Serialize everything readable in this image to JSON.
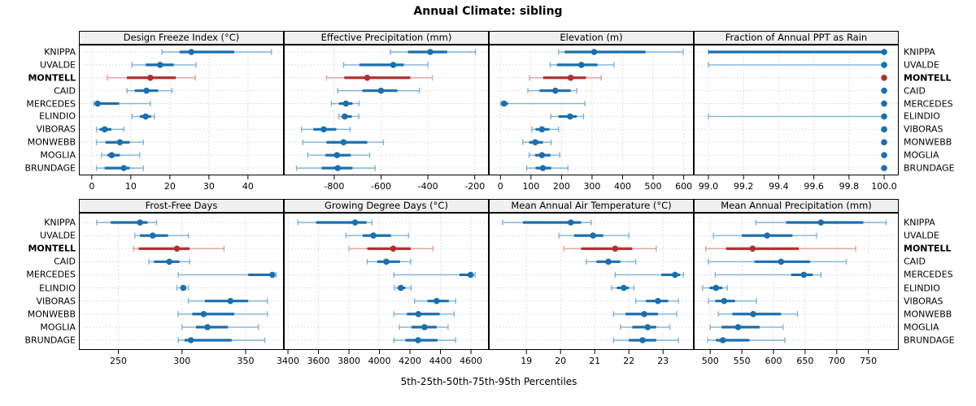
{
  "title": "Annual Climate: sibling",
  "xlabel": "5th-25th-50th-75th-95th Percentiles",
  "stations": [
    "KNIPPA",
    "UVALDE",
    "MONTELL",
    "CAID",
    "MERCEDES",
    "ELINDIO",
    "VIBORAS",
    "MONWEBB",
    "MOGLIA",
    "BRUNDAGE"
  ],
  "highlight_station": "MONTELL",
  "colors": {
    "series": "#1B6FAE",
    "series_light": "#7FB2D8",
    "highlight": "#B03030",
    "highlight_light": "#DE9F9F",
    "grid": "#D9D9D9",
    "strip_bg": "#F0F0F0",
    "panel_border": "#000000",
    "text": "#000000"
  },
  "chart_data": {
    "type": "dotplot-intervals",
    "percentiles": [
      5,
      25,
      50,
      75,
      95
    ],
    "grid": "dashed",
    "legend_position": "none",
    "layout": {
      "rows": 2,
      "cols": 4
    },
    "panels": [
      {
        "title": "Design Freeze Index (°C)",
        "row": 0,
        "col": 0,
        "xlim": [
          -3.3,
          49.2
        ],
        "ticks": [
          0,
          10,
          20,
          30,
          40
        ],
        "tick_labels": [
          "0",
          "10",
          "20",
          "30",
          "40"
        ],
        "values": [
          [
            18,
            22.5,
            25.5,
            36.5,
            46
          ],
          [
            10.3,
            13.8,
            17.5,
            21,
            26.7
          ],
          [
            4,
            9,
            15,
            21.5,
            26.5
          ],
          [
            9,
            11,
            14,
            17,
            20.5
          ],
          [
            0.5,
            1,
            1.5,
            7,
            15
          ],
          [
            10.3,
            12.3,
            13.8,
            15.2,
            16
          ],
          [
            1.2,
            2,
            3.3,
            5,
            8.2
          ],
          [
            1.2,
            3.5,
            7.2,
            9.7,
            13.2
          ],
          [
            2.5,
            4,
            5.1,
            7.2,
            12.3
          ],
          [
            1.2,
            3.3,
            8.2,
            9.7,
            13.2
          ]
        ]
      },
      {
        "title": "Effective Precipitation (mm)",
        "row": 0,
        "col": 1,
        "xlim": [
          -1015,
          -140
        ],
        "ticks": [
          -800,
          -600,
          -400,
          -200
        ],
        "tick_labels": [
          "-800",
          "-600",
          "-400",
          "-200"
        ],
        "values": [
          [
            -560,
            -485,
            -390,
            -318,
            -197
          ],
          [
            -760,
            -693,
            -548,
            -503,
            -400
          ],
          [
            -833,
            -757,
            -659,
            -475,
            -381
          ],
          [
            -785,
            -680,
            -600,
            -530,
            -436
          ],
          [
            -812,
            -780,
            -750,
            -722,
            -694
          ],
          [
            -780,
            -768,
            -755,
            -725,
            -695
          ],
          [
            -940,
            -889,
            -845,
            -791,
            -732
          ],
          [
            -934,
            -833,
            -760,
            -659,
            -590
          ],
          [
            -913,
            -837,
            -788,
            -729,
            -649
          ],
          [
            -961,
            -854,
            -785,
            -722,
            -625
          ]
        ]
      },
      {
        "title": "Elevation (m)",
        "row": 0,
        "col": 2,
        "xlim": [
          -38,
          633
        ],
        "ticks": [
          0,
          100,
          200,
          300,
          400,
          500,
          600
        ],
        "tick_labels": [
          "0",
          "100",
          "200",
          "300",
          "400",
          "500",
          "600"
        ],
        "values": [
          [
            190,
            210,
            307,
            475,
            598
          ],
          [
            163,
            185,
            265,
            318,
            372
          ],
          [
            95,
            140,
            230,
            280,
            330
          ],
          [
            90,
            128,
            180,
            230,
            250
          ],
          [
            1,
            5,
            12,
            25,
            277
          ],
          [
            165,
            190,
            228,
            250,
            272
          ],
          [
            103,
            115,
            136,
            160,
            190
          ],
          [
            73,
            94,
            114,
            139,
            166
          ],
          [
            94,
            114,
            136,
            164,
            194
          ],
          [
            86,
            115,
            139,
            166,
            221
          ]
        ]
      },
      {
        "title": "Fraction of Annual PPT as Rain",
        "row": 0,
        "col": 3,
        "xlim": [
          98.917,
          100.083
        ],
        "ticks": [
          99.0,
          99.2,
          99.4,
          99.6,
          99.8,
          100.0
        ],
        "tick_labels": [
          "99.0",
          "99.2",
          "99.4",
          "99.6",
          "99.8",
          "100.0"
        ],
        "values": [
          [
            99,
            99,
            100,
            100,
            100
          ],
          [
            99,
            100,
            100,
            100,
            100
          ],
          [
            100,
            100,
            100,
            100,
            100
          ],
          [
            100,
            100,
            100,
            100,
            100
          ],
          [
            100,
            100,
            100,
            100,
            100
          ],
          [
            99,
            100,
            100,
            100,
            100
          ],
          [
            100,
            100,
            100,
            100,
            100
          ],
          [
            100,
            100,
            100,
            100,
            100
          ],
          [
            100,
            100,
            100,
            100,
            100
          ],
          [
            100,
            100,
            100,
            100,
            100
          ]
        ]
      },
      {
        "title": "Frost-Free Days",
        "row": 1,
        "col": 0,
        "xlim": [
          219,
          380
        ],
        "ticks": [
          250,
          300,
          350
        ],
        "tick_labels": [
          "250",
          "300",
          "350"
        ],
        "values": [
          [
            233,
            244,
            267,
            273,
            280
          ],
          [
            263,
            267,
            277,
            289,
            305
          ],
          [
            262,
            266,
            296,
            306,
            333
          ],
          [
            274,
            278,
            290,
            298,
            306
          ],
          [
            297,
            352,
            371,
            372,
            374
          ],
          [
            296,
            299,
            301,
            303,
            305
          ],
          [
            305,
            318,
            338,
            352,
            367
          ],
          [
            297,
            308,
            317,
            341,
            367
          ],
          [
            300,
            311,
            320,
            336,
            360
          ],
          [
            297,
            302,
            307,
            339,
            365
          ]
        ]
      },
      {
        "title": "Growing Degree Days (°C)",
        "row": 1,
        "col": 1,
        "xlim": [
          3373,
          4717
        ],
        "ticks": [
          3400,
          3600,
          3800,
          4000,
          4200,
          4400,
          4600
        ],
        "tick_labels": [
          "3400",
          "3600",
          "3800",
          "4000",
          "4200",
          "4400",
          "4600"
        ],
        "values": [
          [
            3465,
            3585,
            3840,
            3915,
            3950
          ],
          [
            3780,
            3890,
            3960,
            4075,
            4190
          ],
          [
            3800,
            3920,
            4090,
            4205,
            4350
          ],
          [
            3920,
            3985,
            4045,
            4135,
            4205
          ],
          [
            4095,
            4525,
            4598,
            4615,
            4627
          ],
          [
            4098,
            4118,
            4140,
            4170,
            4207
          ],
          [
            4230,
            4315,
            4375,
            4455,
            4500
          ],
          [
            4095,
            4180,
            4255,
            4395,
            4490
          ],
          [
            4130,
            4210,
            4295,
            4375,
            4450
          ],
          [
            4095,
            4170,
            4253,
            4380,
            4500
          ]
        ]
      },
      {
        "title": "Mean Annual Air Temperature (°C)",
        "row": 1,
        "col": 2,
        "xlim": [
          17.9,
          23.9
        ],
        "ticks": [
          19,
          20,
          21,
          22,
          23
        ],
        "tick_labels": [
          "19",
          "20",
          "21",
          "22",
          "23"
        ],
        "values": [
          [
            18.3,
            18.9,
            20.3,
            20.6,
            20.9
          ],
          [
            19.95,
            20.4,
            20.95,
            21.25,
            22.0
          ],
          [
            20.1,
            20.6,
            21.6,
            22.1,
            22.8
          ],
          [
            20.75,
            21.05,
            21.4,
            21.75,
            22.2
          ],
          [
            21.6,
            22.95,
            23.35,
            23.5,
            23.6
          ],
          [
            21.5,
            21.65,
            21.85,
            22.0,
            22.15
          ],
          [
            22.2,
            22.5,
            22.85,
            23.15,
            23.45
          ],
          [
            21.55,
            21.9,
            22.45,
            22.85,
            23.4
          ],
          [
            21.75,
            22.1,
            22.55,
            22.8,
            23.2
          ],
          [
            21.55,
            22.0,
            22.4,
            22.8,
            23.45
          ]
        ]
      },
      {
        "title": "Mean Annual Precipitation (mm)",
        "row": 1,
        "col": 3,
        "xlim": [
          474,
          798
        ],
        "ticks": [
          500,
          550,
          600,
          650,
          700,
          750
        ],
        "tick_labels": [
          "500",
          "550",
          "600",
          "650",
          "700",
          "750"
        ],
        "values": [
          [
            572,
            620,
            675,
            742,
            778
          ],
          [
            505,
            550,
            590,
            630,
            668
          ],
          [
            493,
            525,
            567,
            640,
            730
          ],
          [
            497,
            570,
            612,
            658,
            715
          ],
          [
            508,
            628,
            648,
            662,
            675
          ],
          [
            488,
            499,
            509,
            519,
            527
          ],
          [
            497,
            508,
            522,
            539,
            573
          ],
          [
            513,
            535,
            568,
            612,
            638
          ],
          [
            500,
            518,
            544,
            578,
            615
          ],
          [
            496,
            509,
            520,
            562,
            618
          ]
        ]
      }
    ]
  }
}
